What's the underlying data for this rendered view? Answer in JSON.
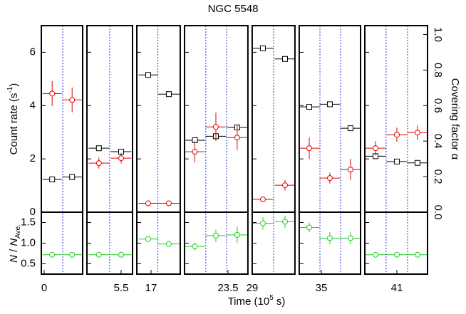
{
  "chart_data": {
    "type": "scatter",
    "title": "NGC 5548",
    "ylabel": [
      "Count rate (s",
      "-1",
      ")"
    ],
    "y2label": "Covering factor α",
    "y3label": [
      "N",
      " / ",
      "N",
      "Ave."
    ],
    "xlabel": [
      "Time (10",
      "5",
      " s)"
    ],
    "ylim": [
      0,
      7
    ],
    "yticks": [
      0,
      2,
      4,
      6
    ],
    "y2lim": [
      0,
      1.05
    ],
    "y2ticks": [
      {
        "value": 0,
        "label": "0.0"
      },
      0.2,
      0.4,
      0.6,
      0.8,
      {
        "value": 1,
        "label": "1.0"
      }
    ],
    "y3lim": [
      0.25,
      1.75
    ],
    "y3ticks": [
      0.5,
      {
        "value": 1,
        "label": "1.0"
      },
      1.5
    ],
    "colors": {
      "count": "#000000",
      "alpha": "#e00000",
      "norm": "#22cc22",
      "divider": "#3333dd"
    },
    "panels": [
      {
        "xlim": [
          -0.25,
          3.375
        ],
        "xticks": [
          0
        ],
        "dividers": [
          1.63
        ],
        "x": [
          0.7,
          2.45
        ],
        "xerr": [
          0.85,
          0.85
        ],
        "count": [
          1.23,
          1.32
        ],
        "alpha": [
          0.668,
          0.632
        ],
        "alpha_err": [
          0.07,
          0.07
        ],
        "norm": [
          0.72,
          0.72
        ],
        "norm_err": [
          0.02,
          0.02
        ]
      },
      {
        "xlim": [
          2.5,
          6.5
        ],
        "xticks": [
          5.5
        ],
        "dividers": [
          4.5
        ],
        "x": [
          3.55,
          5.5
        ],
        "xerr": [
          0.9,
          0.9
        ],
        "count": [
          2.4,
          2.27
        ],
        "alpha": [
          0.276,
          0.304
        ],
        "alpha_err": [
          0.03,
          0.03
        ],
        "norm": [
          0.72,
          0.72
        ],
        "norm_err": [
          0.02,
          0.02
        ]
      },
      {
        "xlim": [
          15.75,
          19.56
        ],
        "xticks": [
          17
        ],
        "dividers": [
          17.6
        ],
        "x": [
          16.75,
          18.56
        ],
        "xerr": [
          0.85,
          0.95
        ],
        "count": [
          5.15,
          4.43
        ],
        "alpha": [
          0.05,
          0.05
        ],
        "alpha_err": [
          0.01,
          0.01
        ],
        "norm": [
          1.1,
          0.98
        ],
        "norm_err": [
          0.04,
          0.03
        ]
      },
      {
        "xlim": [
          19.69,
          25.25
        ],
        "xticks": [
          23.5
        ],
        "dividers": [
          21.56,
          23.38
        ],
        "x": [
          20.6,
          22.44,
          24.31
        ],
        "xerr": [
          0.9,
          0.9,
          0.9
        ],
        "count": [
          2.7,
          2.85,
          3.18
        ],
        "alpha": [
          0.34,
          0.48,
          0.42
        ],
        "alpha_err": [
          0.06,
          0.08,
          0.07
        ],
        "norm": [
          0.92,
          1.18,
          1.2
        ],
        "norm_err": [
          0.1,
          0.15,
          0.2
        ]
      },
      {
        "xlim": [
          29,
          32.75
        ],
        "xticks": [
          29
        ],
        "dividers": [
          30.88
        ],
        "x": [
          29.94,
          31.88
        ],
        "xerr": [
          0.9,
          0.9
        ],
        "count": [
          6.15,
          5.75
        ],
        "alpha": [
          0.072,
          0.152
        ],
        "alpha_err": [
          0.01,
          0.03
        ],
        "norm": [
          1.48,
          1.52
        ],
        "norm_err": [
          0.15,
          0.15
        ]
      },
      {
        "xlim": [
          33.06,
          38.44
        ],
        "xticks": [
          35
        ],
        "dividers": [
          34.88,
          36.69
        ],
        "x": [
          33.94,
          35.75,
          37.56
        ],
        "xerr": [
          0.9,
          0.9,
          0.9
        ],
        "count": [
          3.95,
          4.05,
          3.15
        ],
        "alpha": [
          0.36,
          0.192,
          0.24
        ],
        "alpha_err": [
          0.06,
          0.03,
          0.06
        ],
        "norm": [
          1.38,
          1.12,
          1.12
        ],
        "norm_err": [
          0.12,
          0.15,
          0.15
        ]
      },
      {
        "xlim": [
          38.19,
          43.69
        ],
        "xticks": [
          41
        ],
        "dividers": [
          40.06,
          41.94
        ],
        "x": [
          39.13,
          41,
          42.81
        ],
        "xerr": [
          0.9,
          0.9,
          0.9
        ],
        "count": [
          2.1,
          1.9,
          1.85
        ],
        "alpha": [
          0.36,
          0.436,
          0.448
        ],
        "alpha_err": [
          0.04,
          0.04,
          0.04
        ],
        "norm": [
          0.72,
          0.72,
          0.72
        ],
        "norm_err": [
          0.02,
          0.02,
          0.02
        ]
      }
    ]
  }
}
